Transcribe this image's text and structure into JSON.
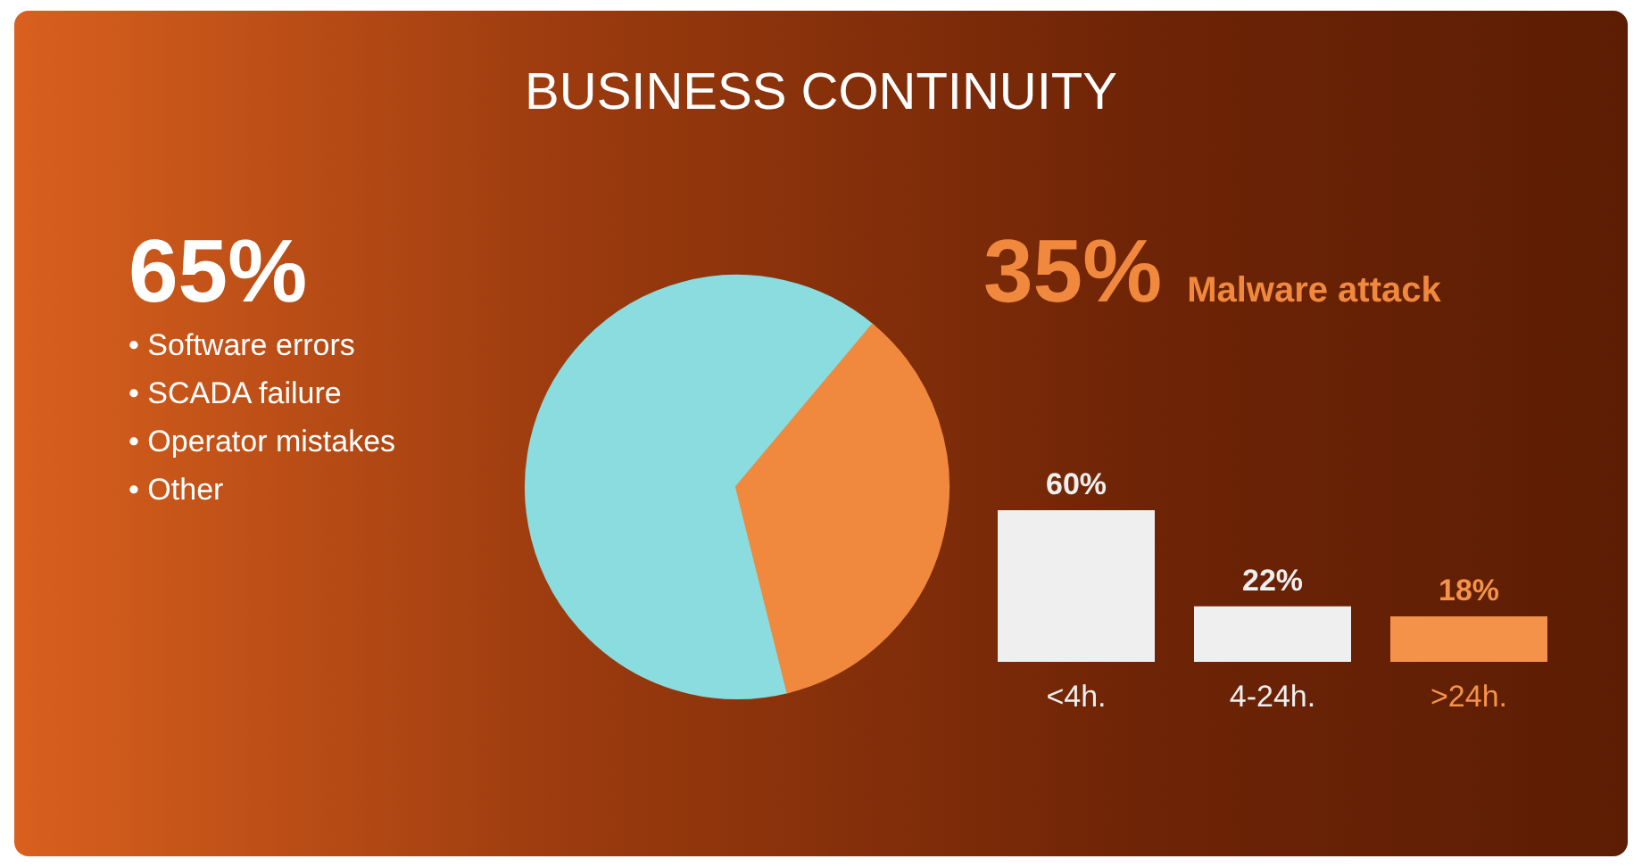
{
  "chart_data": [
    {
      "type": "pie",
      "title": "BUSINESS CONTINUITY",
      "categories": [
        null,
        "Malware attack"
      ],
      "values": [
        65,
        35
      ],
      "colors": [
        "#8adcdf",
        "#f0883e"
      ],
      "value_labels": [
        "65%",
        "35%"
      ],
      "annotations": [
        "• Software errors",
        "• SCADA failure",
        "• Operator mistakes",
        "• Other"
      ]
    },
    {
      "type": "bar",
      "categories": [
        "<4h.",
        "4-24h.",
        ">24h."
      ],
      "values": [
        60,
        22,
        18
      ],
      "colors": [
        "#efefef",
        "#efefef",
        "#f5924a"
      ],
      "value_labels": [
        "60%",
        "22%",
        "18%"
      ]
    }
  ]
}
